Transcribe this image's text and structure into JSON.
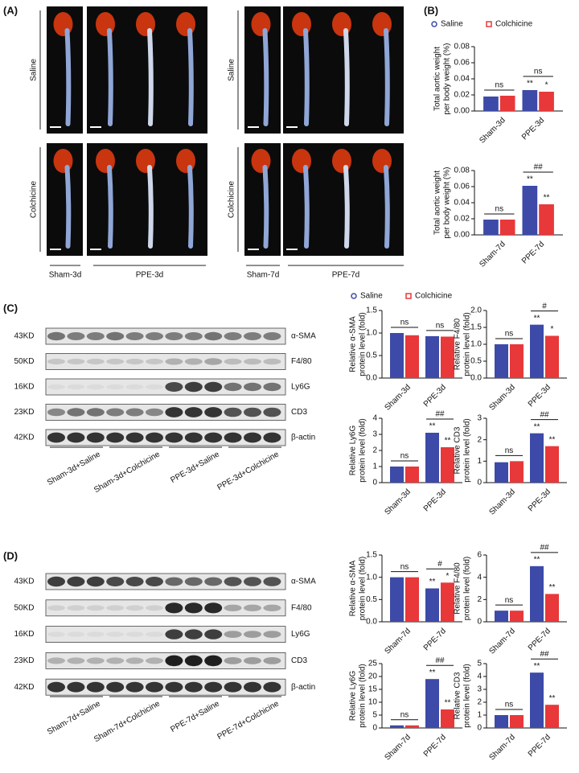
{
  "panels": [
    "(A)",
    "(B)",
    "(C)",
    "(D)"
  ],
  "panel_a": {
    "rows": [
      "Saline",
      "Colchicine"
    ],
    "groups": [
      "Sham-3d",
      "PPE-3d",
      "Sham-7d",
      "PPE-7d"
    ]
  },
  "blots": [
    {
      "kd": [
        "43KD",
        "50KD",
        "16KD",
        "23KD",
        "42KD"
      ],
      "proteins": [
        "α-SMA",
        "F4/80",
        "Ly6G",
        "CD3",
        "β-actin"
      ],
      "groups": [
        "Sham-3d+Saline",
        "Sham-3d+Colchicine",
        "PPE-3d+Saline",
        "PPE-3d+Colchicine"
      ]
    },
    {
      "kd": [
        "43KD",
        "50KD",
        "16KD",
        "23KD",
        "42KD"
      ],
      "proteins": [
        "α-SMA",
        "F4/80",
        "Ly6G",
        "CD3",
        "β-actin"
      ],
      "groups": [
        "Sham-7d+Saline",
        "Sham-7d+Colchicine",
        "PPE-7d+Saline",
        "PPE-7d+Colchicine"
      ]
    }
  ],
  "chart_data": [
    {
      "type": "bar",
      "ylabel": [
        "Total aortic weight",
        "per body weight (%)"
      ],
      "categories": [
        "Sham-3d",
        "PPE-3d"
      ],
      "legend": true,
      "series": [
        {
          "name": "Saline",
          "color": "#3d4aa8",
          "values": [
            0.018,
            0.026
          ],
          "stars": [
            null,
            "**"
          ]
        },
        {
          "name": "Colchicine",
          "color": "#e8383a",
          "values": [
            0.019,
            0.024
          ],
          "stars": [
            null,
            "*"
          ]
        }
      ],
      "comparisons": [
        "ns",
        "ns"
      ],
      "ylim": [
        0,
        0.08
      ],
      "yticks": [
        {
          "value": 0,
          "label": "0.00"
        },
        0.02,
        0.04,
        0.06,
        0.08
      ]
    },
    {
      "type": "bar",
      "ylabel": [
        "Total aortic weight",
        "per body weight (%)"
      ],
      "categories": [
        "Sham-7d",
        "PPE-7d"
      ],
      "series": [
        {
          "name": "Saline",
          "color": "#3d4aa8",
          "values": [
            0.019,
            0.061
          ],
          "stars": [
            null,
            "**"
          ]
        },
        {
          "name": "Colchicine",
          "color": "#e8383a",
          "values": [
            0.019,
            0.038
          ],
          "stars": [
            null,
            "**"
          ]
        }
      ],
      "comparisons": [
        "ns",
        "##"
      ],
      "ylim": [
        0,
        0.08
      ],
      "yticks": [
        {
          "value": 0,
          "label": "0.00"
        },
        0.02,
        0.04,
        0.06,
        0.08
      ]
    },
    {
      "type": "bar",
      "ylabel": [
        "Relative α-SMA",
        "protein level (fold)"
      ],
      "categories": [
        "Sham-3d",
        "PPE-3d"
      ],
      "legend": true,
      "series": [
        {
          "name": "Saline",
          "color": "#3d4aa8",
          "values": [
            1.0,
            0.93
          ],
          "stars": [
            null,
            null
          ]
        },
        {
          "name": "Colchicine",
          "color": "#e8383a",
          "values": [
            0.95,
            0.92
          ],
          "stars": [
            null,
            null
          ]
        }
      ],
      "comparisons": [
        "ns",
        "ns"
      ],
      "ylim": [
        0,
        1.5
      ],
      "yticks": [
        {
          "value": 0,
          "label": "0.0"
        },
        0.5,
        {
          "value": 1,
          "label": "1.0"
        },
        1.5
      ]
    },
    {
      "type": "bar",
      "ylabel": [
        "Relative F4/80",
        "protein level (fold)"
      ],
      "categories": [
        "Sham-3d",
        "PPE-3d"
      ],
      "series": [
        {
          "name": "Saline",
          "color": "#3d4aa8",
          "values": [
            1.0,
            1.58
          ],
          "stars": [
            null,
            "**"
          ]
        },
        {
          "name": "Colchicine",
          "color": "#e8383a",
          "values": [
            1.0,
            1.25
          ],
          "stars": [
            null,
            "*"
          ]
        }
      ],
      "comparisons": [
        "ns",
        "#"
      ],
      "ylim": [
        0,
        2
      ],
      "yticks": [
        {
          "value": 0,
          "label": "0.0"
        },
        0.5,
        {
          "value": 1,
          "label": "1.0"
        },
        1.5,
        {
          "value": 2,
          "label": "2.0"
        }
      ]
    },
    {
      "type": "bar",
      "ylabel": [
        "Relative Ly6G",
        "protein level (fold)"
      ],
      "categories": [
        "Sham-3d",
        "PPE-3d"
      ],
      "series": [
        {
          "name": "Saline",
          "color": "#3d4aa8",
          "values": [
            1.0,
            3.1
          ],
          "stars": [
            null,
            "**"
          ]
        },
        {
          "name": "Colchicine",
          "color": "#e8383a",
          "values": [
            1.0,
            2.2
          ],
          "stars": [
            null,
            "**"
          ]
        }
      ],
      "comparisons": [
        "ns",
        "##"
      ],
      "ylim": [
        0,
        4
      ],
      "yticks": [
        0,
        1,
        2,
        3,
        4
      ]
    },
    {
      "type": "bar",
      "ylabel": [
        "Relative CD3",
        "protein level (fold)"
      ],
      "categories": [
        "Sham-3d",
        "PPE-3d"
      ],
      "series": [
        {
          "name": "Saline",
          "color": "#3d4aa8",
          "values": [
            0.95,
            2.3
          ],
          "stars": [
            null,
            "**"
          ]
        },
        {
          "name": "Colchicine",
          "color": "#e8383a",
          "values": [
            1.0,
            1.7
          ],
          "stars": [
            null,
            "**"
          ]
        }
      ],
      "comparisons": [
        "ns",
        "##"
      ],
      "ylim": [
        0,
        3
      ],
      "yticks": [
        0,
        1,
        2,
        3
      ]
    },
    {
      "type": "bar",
      "ylabel": [
        "Relative α-SMA",
        "protein level (fold)"
      ],
      "categories": [
        "Sham-7d",
        "PPE-7d"
      ],
      "series": [
        {
          "name": "Saline",
          "color": "#3d4aa8",
          "values": [
            1.0,
            0.75
          ],
          "stars": [
            null,
            "**"
          ]
        },
        {
          "name": "Colchicine",
          "color": "#e8383a",
          "values": [
            1.0,
            0.88
          ],
          "stars": [
            null,
            "*"
          ]
        }
      ],
      "comparisons": [
        "ns",
        "#"
      ],
      "ylim": [
        0,
        1.5
      ],
      "yticks": [
        {
          "value": 0,
          "label": "0.0"
        },
        0.5,
        {
          "value": 1,
          "label": "1.0"
        },
        1.5
      ]
    },
    {
      "type": "bar",
      "ylabel": [
        "Relative F4/80",
        "protein level (fold)"
      ],
      "categories": [
        "Sham-7d",
        "PPE-7d"
      ],
      "series": [
        {
          "name": "Saline",
          "color": "#3d4aa8",
          "values": [
            1.0,
            5.0
          ],
          "stars": [
            null,
            "**"
          ]
        },
        {
          "name": "Colchicine",
          "color": "#e8383a",
          "values": [
            1.0,
            2.5
          ],
          "stars": [
            null,
            "**"
          ]
        }
      ],
      "comparisons": [
        "ns",
        "##"
      ],
      "ylim": [
        0,
        6
      ],
      "yticks": [
        0,
        2,
        4,
        6
      ]
    },
    {
      "type": "bar",
      "ylabel": [
        "Relative Ly6G",
        "protein level (fold)"
      ],
      "categories": [
        "Sham-7d",
        "PPE-7d"
      ],
      "series": [
        {
          "name": "Saline",
          "color": "#3d4aa8",
          "values": [
            1.0,
            19
          ],
          "stars": [
            null,
            "**"
          ]
        },
        {
          "name": "Colchicine",
          "color": "#e8383a",
          "values": [
            1.0,
            7.2
          ],
          "stars": [
            null,
            "**"
          ]
        }
      ],
      "comparisons": [
        "ns",
        "##"
      ],
      "ylim": [
        0,
        25
      ],
      "yticks": [
        0,
        5,
        10,
        15,
        20,
        25
      ]
    },
    {
      "type": "bar",
      "ylabel": [
        "Relative CD3",
        "protein level (fold)"
      ],
      "categories": [
        "Sham-7d",
        "PPE-7d"
      ],
      "series": [
        {
          "name": "Saline",
          "color": "#3d4aa8",
          "values": [
            1.0,
            4.3
          ],
          "stars": [
            null,
            "**"
          ]
        },
        {
          "name": "Colchicine",
          "color": "#e8383a",
          "values": [
            1.0,
            1.8
          ],
          "stars": [
            null,
            "**"
          ]
        }
      ],
      "comparisons": [
        "ns",
        "##"
      ],
      "ylim": [
        0,
        5
      ],
      "yticks": [
        0,
        1,
        2,
        3,
        4,
        5
      ]
    }
  ]
}
